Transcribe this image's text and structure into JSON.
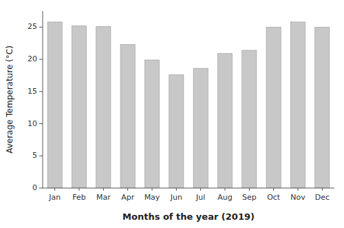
{
  "chart_data": {
    "type": "bar",
    "categories": [
      "Jan",
      "Feb",
      "Mar",
      "Apr",
      "May",
      "Jun",
      "Jul",
      "Aug",
      "Sep",
      "Oct",
      "Nov",
      "Dec"
    ],
    "values": [
      25.8,
      25.2,
      25.1,
      22.3,
      19.9,
      17.6,
      18.6,
      20.9,
      21.4,
      25.0,
      25.8,
      25.0
    ],
    "color": "#c8c8c8",
    "xlabel": "Months of the year (2019)",
    "ylabel": "Average Temperature (°C)",
    "ylim": [
      0,
      27.5
    ],
    "yticks": [
      0,
      5,
      10,
      15,
      20,
      25
    ],
    "grid": false
  }
}
